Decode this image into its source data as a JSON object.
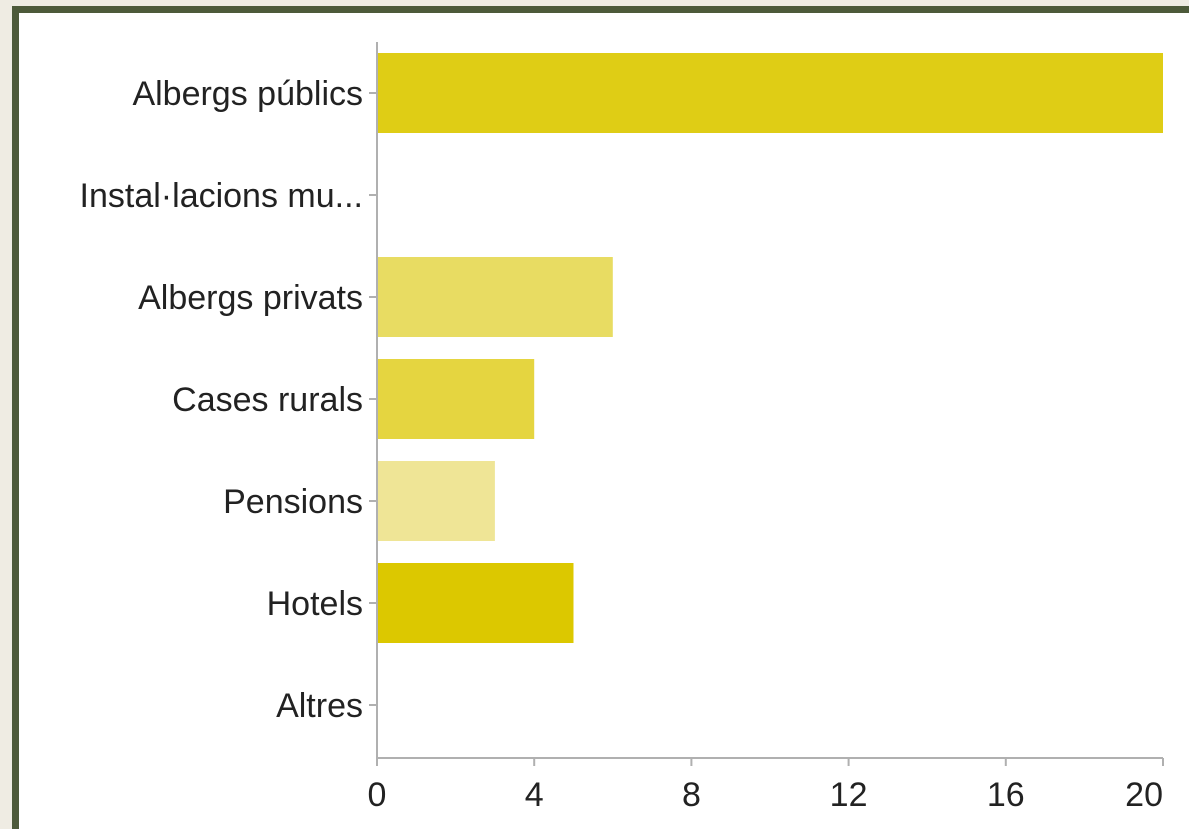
{
  "chart_data": {
    "type": "bar",
    "orientation": "horizontal",
    "categories": [
      "Albergs públics",
      "Instal·lacions mu...",
      "Albergs privats",
      "Cases rurals",
      "Pensions",
      "Hotels",
      "Altres"
    ],
    "values": [
      20,
      0,
      6,
      4,
      3,
      5,
      0
    ],
    "bar_colors": [
      "#dfcd15",
      "#e0ce1a",
      "#e8dc62",
      "#e5d540",
      "#efe596",
      "#dcc800",
      "#e0ce1a"
    ],
    "xlim": [
      0,
      20
    ],
    "xticks": [
      0,
      4,
      8,
      12,
      16,
      20
    ],
    "title": "",
    "xlabel": "",
    "ylabel": "",
    "grid": false,
    "legend": "none"
  }
}
